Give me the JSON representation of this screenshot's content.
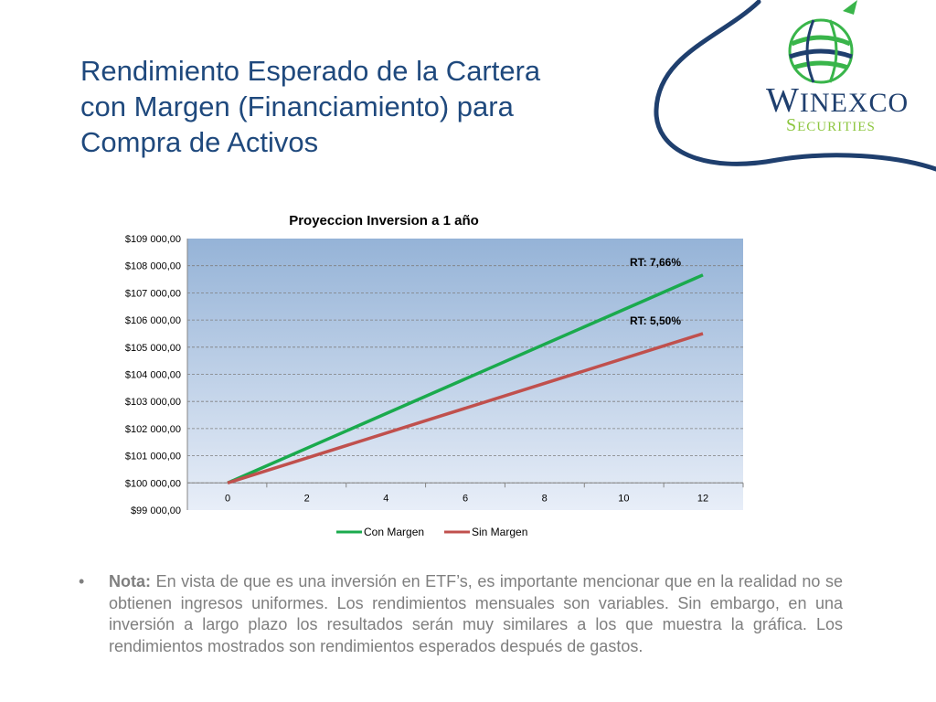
{
  "slide": {
    "title_lines": [
      "Rendimiento Esperado de la Cartera",
      "con Margen (Financiamiento) para",
      "Compra de Activos"
    ]
  },
  "logo": {
    "name_initial": "W",
    "name_rest": "INEXCO",
    "subtitle_initial": "S",
    "subtitle_rest": "ECURITIES",
    "colors": {
      "name": "#1f3f6e",
      "subtitle": "#8dc63f",
      "globe_green": "#39b54a",
      "globe_blue": "#1f3f6e"
    }
  },
  "chart_data": {
    "type": "line",
    "title": "Proyeccion Inversion a 1 año",
    "x": [
      0,
      2,
      4,
      6,
      8,
      10,
      12
    ],
    "xlim": [
      0,
      12
    ],
    "ylim": [
      99000,
      109000
    ],
    "ytick_step": 1000,
    "ytick_labels": [
      "$99 000,00",
      "$100 000,00",
      "$101 000,00",
      "$102 000,00",
      "$103 000,00",
      "$104 000,00",
      "$105 000,00",
      "$106 000,00",
      "$107 000,00",
      "$108 000,00",
      "$109 000,00"
    ],
    "series": [
      {
        "name": "Con Margen",
        "color": "#1aaa4d",
        "x": [
          0,
          12
        ],
        "values": [
          100000,
          107660
        ],
        "annotation": "RT: 7,66%"
      },
      {
        "name": "Sin Margen",
        "color": "#c0504d",
        "x": [
          0,
          12
        ],
        "values": [
          100000,
          105500
        ],
        "annotation": "RT: 5,50%"
      }
    ],
    "grid": true,
    "legend": "bottom",
    "plot_background": {
      "top": "#95b3d7",
      "bottom": "#e8eef8"
    }
  },
  "note": {
    "bullet": "•",
    "label": "Nota:",
    "text": "En vista de que es una inversión en ETF’s, es importante mencionar que en la realidad no se obtienen ingresos uniformes. Los rendimientos mensuales son variables. Sin embargo, en una inversión a largo plazo los resultados serán muy similares a los que muestra la gráfica. Los rendimientos mostrados son rendimientos esperados después de gastos."
  }
}
